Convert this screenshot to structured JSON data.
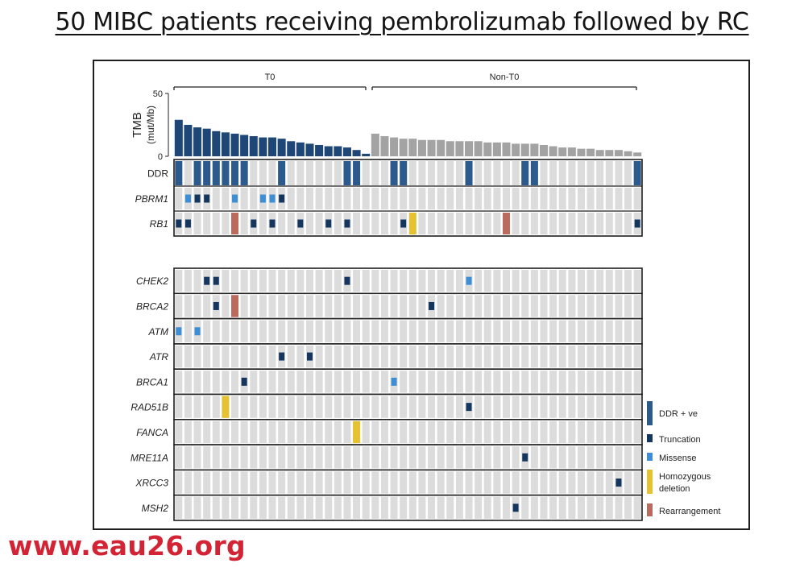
{
  "slide": {
    "title": "50 MIBC patients receiving pembrolizumab followed by RC",
    "watermark": "www.eau26.org"
  },
  "colors": {
    "t0_bar": "#1e4676",
    "nont0_bar": "#a3a3a3",
    "cell_empty": "#dcdcdc",
    "ddr_positive": "#2d5a8c",
    "truncation": "#15365f",
    "missense": "#3d8ed4",
    "homozygous_deletion": "#e5c232",
    "rearrangement": "#bc6a5e"
  },
  "chart_data": {
    "type": "oncoprint",
    "n_patients": 50,
    "groups": [
      {
        "name": "T0",
        "start": 1,
        "end": 21
      },
      {
        "name": "Non-T0",
        "start": 22,
        "end": 50
      }
    ],
    "tmb": {
      "ylabel": "TMB",
      "ylabel_units": "(mut/Mb)",
      "ylim": [
        0,
        50
      ],
      "ticks": [
        0,
        50
      ],
      "values": [
        29,
        25,
        23,
        22,
        20,
        19,
        18,
        17,
        16,
        15,
        15,
        14,
        12,
        11,
        10,
        9,
        8,
        8,
        7,
        5,
        2,
        18,
        16,
        15,
        14,
        14,
        13,
        13,
        13,
        12,
        12,
        12,
        12,
        11,
        11,
        11,
        10,
        10,
        10,
        9,
        8,
        7,
        7,
        6,
        6,
        5,
        5,
        5,
        4,
        3
      ]
    },
    "annotation_tracks": [
      {
        "label": "DDR",
        "italic": false,
        "events": [
          {
            "patient": 1,
            "type": "ddr_positive"
          },
          {
            "patient": 3,
            "type": "ddr_positive"
          },
          {
            "patient": 4,
            "type": "ddr_positive"
          },
          {
            "patient": 5,
            "type": "ddr_positive"
          },
          {
            "patient": 6,
            "type": "ddr_positive"
          },
          {
            "patient": 7,
            "type": "ddr_positive"
          },
          {
            "patient": 8,
            "type": "ddr_positive"
          },
          {
            "patient": 12,
            "type": "ddr_positive"
          },
          {
            "patient": 19,
            "type": "ddr_positive"
          },
          {
            "patient": 20,
            "type": "ddr_positive"
          },
          {
            "patient": 24,
            "type": "ddr_positive"
          },
          {
            "patient": 25,
            "type": "ddr_positive"
          },
          {
            "patient": 32,
            "type": "ddr_positive"
          },
          {
            "patient": 38,
            "type": "ddr_positive"
          },
          {
            "patient": 39,
            "type": "ddr_positive"
          },
          {
            "patient": 50,
            "type": "ddr_positive"
          }
        ]
      },
      {
        "label": "PBRM1",
        "italic": true,
        "events": [
          {
            "patient": 2,
            "type": "missense"
          },
          {
            "patient": 3,
            "type": "truncation"
          },
          {
            "patient": 4,
            "type": "truncation"
          },
          {
            "patient": 7,
            "type": "missense"
          },
          {
            "patient": 10,
            "type": "missense"
          },
          {
            "patient": 11,
            "type": "missense"
          },
          {
            "patient": 12,
            "type": "truncation"
          }
        ]
      },
      {
        "label": "RB1",
        "italic": true,
        "events": [
          {
            "patient": 1,
            "type": "truncation"
          },
          {
            "patient": 2,
            "type": "truncation"
          },
          {
            "patient": 7,
            "type": "rearrangement"
          },
          {
            "patient": 9,
            "type": "truncation"
          },
          {
            "patient": 11,
            "type": "truncation"
          },
          {
            "patient": 14,
            "type": "truncation"
          },
          {
            "patient": 17,
            "type": "truncation"
          },
          {
            "patient": 19,
            "type": "truncation"
          },
          {
            "patient": 25,
            "type": "truncation"
          },
          {
            "patient": 26,
            "type": "homozygous_deletion"
          },
          {
            "patient": 36,
            "type": "rearrangement"
          },
          {
            "patient": 50,
            "type": "truncation"
          }
        ]
      }
    ],
    "gene_tracks": [
      {
        "label": "CHEK2",
        "events": [
          {
            "patient": 4,
            "type": "truncation"
          },
          {
            "patient": 5,
            "type": "truncation"
          },
          {
            "patient": 19,
            "type": "truncation"
          },
          {
            "patient": 32,
            "type": "missense"
          }
        ]
      },
      {
        "label": "BRCA2",
        "events": [
          {
            "patient": 5,
            "type": "truncation"
          },
          {
            "patient": 7,
            "type": "rearrangement"
          },
          {
            "patient": 28,
            "type": "truncation"
          }
        ]
      },
      {
        "label": "ATM",
        "events": [
          {
            "patient": 1,
            "type": "missense"
          },
          {
            "patient": 3,
            "type": "missense"
          }
        ]
      },
      {
        "label": "ATR",
        "events": [
          {
            "patient": 12,
            "type": "truncation"
          },
          {
            "patient": 15,
            "type": "truncation"
          }
        ]
      },
      {
        "label": "BRCA1",
        "events": [
          {
            "patient": 8,
            "type": "truncation"
          },
          {
            "patient": 24,
            "type": "missense"
          }
        ]
      },
      {
        "label": "RAD51B",
        "events": [
          {
            "patient": 6,
            "type": "homozygous_deletion"
          },
          {
            "patient": 32,
            "type": "truncation"
          }
        ]
      },
      {
        "label": "FANCA",
        "events": [
          {
            "patient": 20,
            "type": "homozygous_deletion"
          }
        ]
      },
      {
        "label": "MRE11A",
        "events": [
          {
            "patient": 38,
            "type": "truncation"
          }
        ]
      },
      {
        "label": "XRCC3",
        "events": [
          {
            "patient": 48,
            "type": "truncation"
          }
        ]
      },
      {
        "label": "MSH2",
        "events": [
          {
            "patient": 37,
            "type": "truncation"
          }
        ]
      }
    ],
    "legend": {
      "placement": "bottom-right",
      "items": [
        {
          "key": "ddr_positive",
          "label": "DDR + ve"
        },
        {
          "key": "truncation",
          "label": "Truncation"
        },
        {
          "key": "missense",
          "label": "Missense"
        },
        {
          "key": "homozygous_deletion",
          "label": "Homozygous deletion"
        },
        {
          "key": "rearrangement",
          "label": "Rearrangement"
        }
      ]
    }
  }
}
